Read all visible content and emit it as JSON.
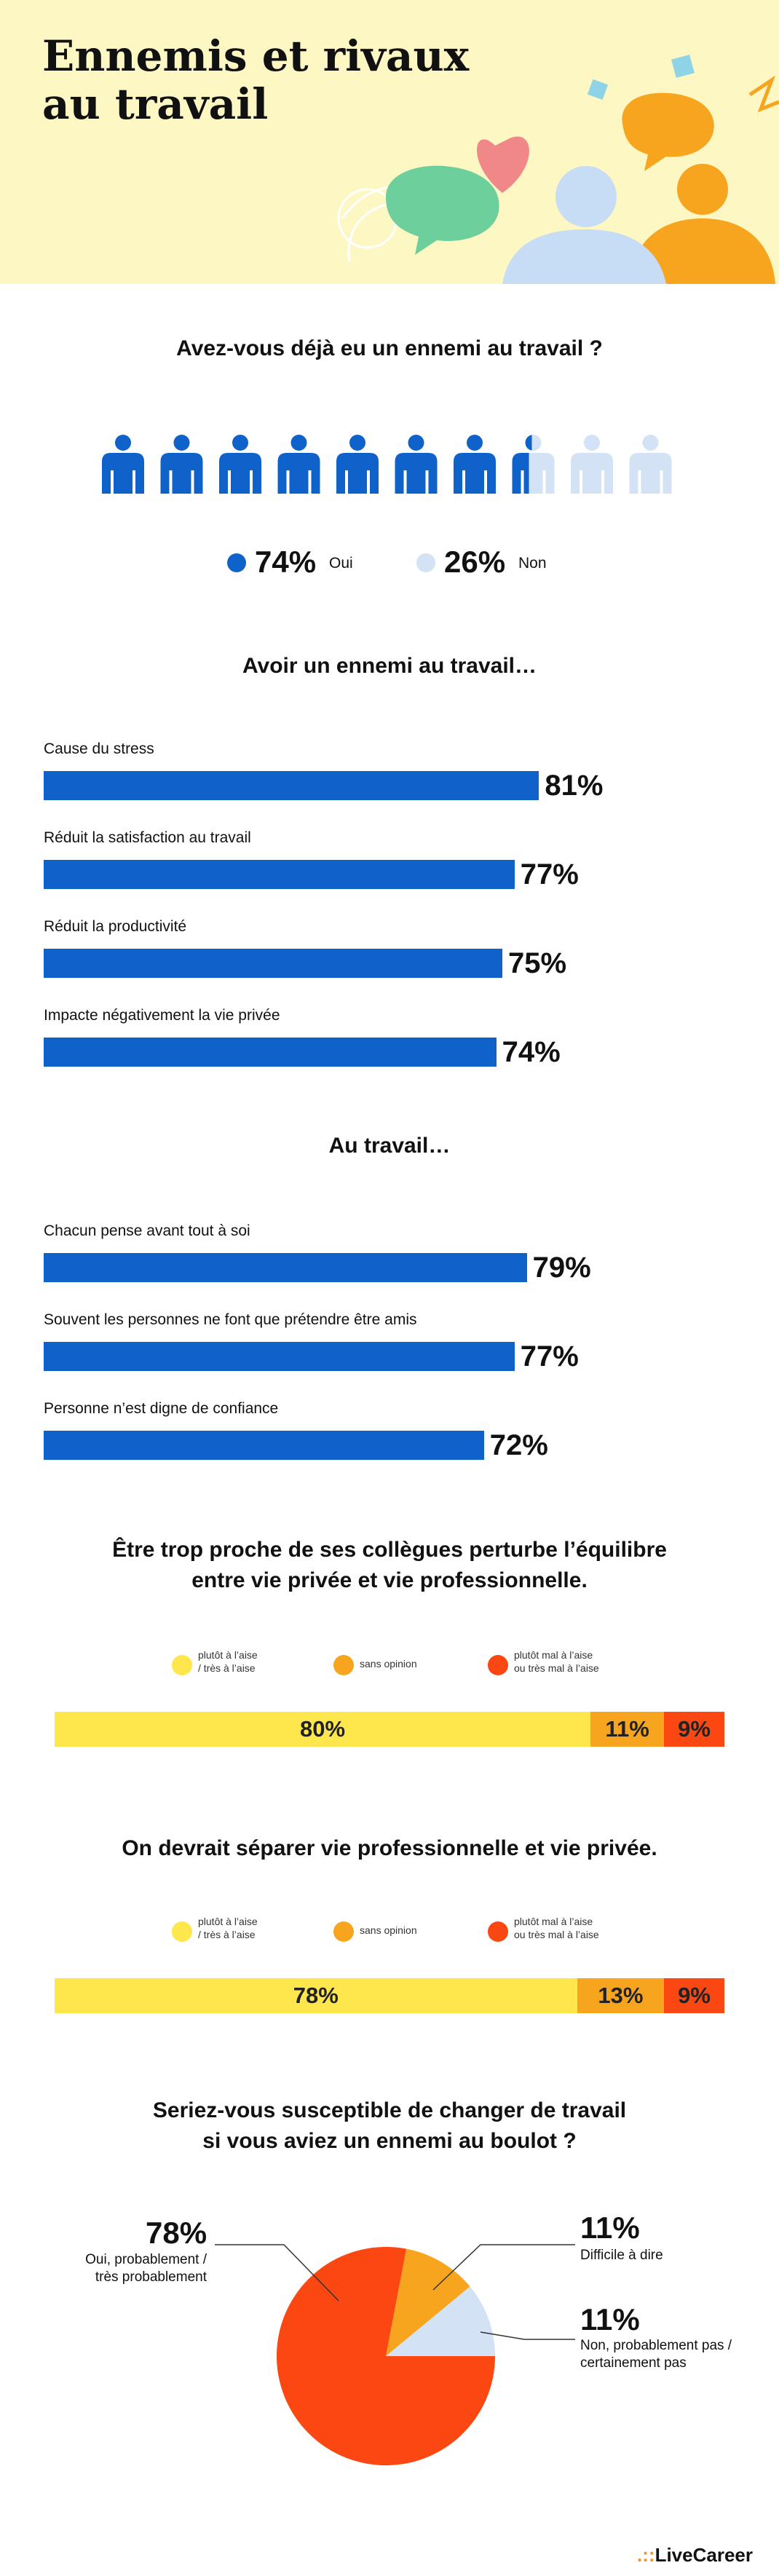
{
  "header": {
    "title": "Ennemis et rivaux\nau travail"
  },
  "q1": {
    "title": "Avez-vous déjà eu un ennemi au travail ?",
    "icons_total": 10,
    "yes_fraction": 0.74,
    "yes_pct": "74%",
    "yes_label": "Oui",
    "no_pct": "26%",
    "no_label": "Non"
  },
  "q2": {
    "title": "Avoir un ennemi au travail…",
    "items": [
      {
        "label": "Cause du stress",
        "value": 81,
        "text": "81%"
      },
      {
        "label": "Réduit la satisfaction au travail",
        "value": 77,
        "text": "77%"
      },
      {
        "label": "Réduit la productivité",
        "value": 75,
        "text": "75%"
      },
      {
        "label": "Impacte négativement la vie privée",
        "value": 74,
        "text": "74%"
      }
    ]
  },
  "q3": {
    "title": "Au travail…",
    "items": [
      {
        "label": "Chacun pense avant tout à soi",
        "value": 79,
        "text": "79%"
      },
      {
        "label": "Souvent les personnes ne font que prétendre être amis",
        "value": 77,
        "text": "77%"
      },
      {
        "label": "Personne n’est digne de confiance",
        "value": 72,
        "text": "72%"
      }
    ]
  },
  "q4": {
    "title": "Être trop proche de ses collègues perturbe l’équilibre\nentre vie privée et vie professionnelle.",
    "legend": [
      "plutôt à l’aise\n/ très à l’aise",
      "sans opinion",
      "plutôt mal à l’aise\nou très mal à l’aise"
    ],
    "values": [
      80,
      11,
      9
    ],
    "texts": [
      "80%",
      "11%",
      "9%"
    ]
  },
  "q5": {
    "title": "On devrait séparer vie professionnelle et vie privée.",
    "legend": [
      "plutôt à l’aise\n/ très à l’aise",
      "sans opinion",
      "plutôt mal à l’aise\nou très mal à l’aise"
    ],
    "values": [
      78,
      13,
      9
    ],
    "texts": [
      "78%",
      "13%",
      "9%"
    ]
  },
  "q6": {
    "title": "Seriez-vous susceptible de changer de travail\nsi vous aviez un ennemi au boulot ?",
    "slices": [
      {
        "pct": "78%",
        "value": 78,
        "label": "Oui, probablement /\ntrès probablement"
      },
      {
        "pct": "11%",
        "value": 11,
        "label": "Difficile à dire"
      },
      {
        "pct": "11%",
        "value": 11,
        "label": "Non, probablement pas /\ncertainement pas"
      }
    ]
  },
  "colors": {
    "blue": "#0f62c9",
    "light_blue": "#d3e2f5",
    "yellow": "#fde74c",
    "orange": "#f7a51e",
    "red": "#fb4711"
  },
  "brand": {
    "name": "LiveCareer",
    "dots": ".::"
  },
  "chart_data": [
    {
      "type": "bar",
      "title": "Avez-vous déjà eu un ennemi au travail ?",
      "categories": [
        "Oui",
        "Non"
      ],
      "values": [
        74,
        26
      ]
    },
    {
      "type": "bar",
      "title": "Avoir un ennemi au travail…",
      "categories": [
        "Cause du stress",
        "Réduit la satisfaction au travail",
        "Réduit la productivité",
        "Impacte négativement la vie privée"
      ],
      "values": [
        81,
        77,
        75,
        74
      ]
    },
    {
      "type": "bar",
      "title": "Au travail…",
      "categories": [
        "Chacun pense avant tout à soi",
        "Souvent les personnes ne font que prétendre être amis",
        "Personne n’est digne de confiance"
      ],
      "values": [
        79,
        77,
        72
      ]
    },
    {
      "type": "bar",
      "title": "Être trop proche de ses collègues perturbe l’équilibre entre vie privée et vie professionnelle.",
      "categories": [
        "plutôt à l’aise / très à l’aise",
        "sans opinion",
        "plutôt mal à l’aise ou très mal à l’aise"
      ],
      "values": [
        80,
        11,
        9
      ]
    },
    {
      "type": "bar",
      "title": "On devrait séparer vie professionnelle et vie privée.",
      "categories": [
        "plutôt à l’aise / très à l’aise",
        "sans opinion",
        "plutôt mal à l’aise ou très mal à l’aise"
      ],
      "values": [
        78,
        13,
        9
      ]
    },
    {
      "type": "pie",
      "title": "Seriez-vous susceptible de changer de travail si vous aviez un ennemi au boulot ?",
      "categories": [
        "Oui, probablement / très probablement",
        "Difficile à dire",
        "Non, probablement pas / certainement pas"
      ],
      "values": [
        78,
        11,
        11
      ]
    }
  ]
}
